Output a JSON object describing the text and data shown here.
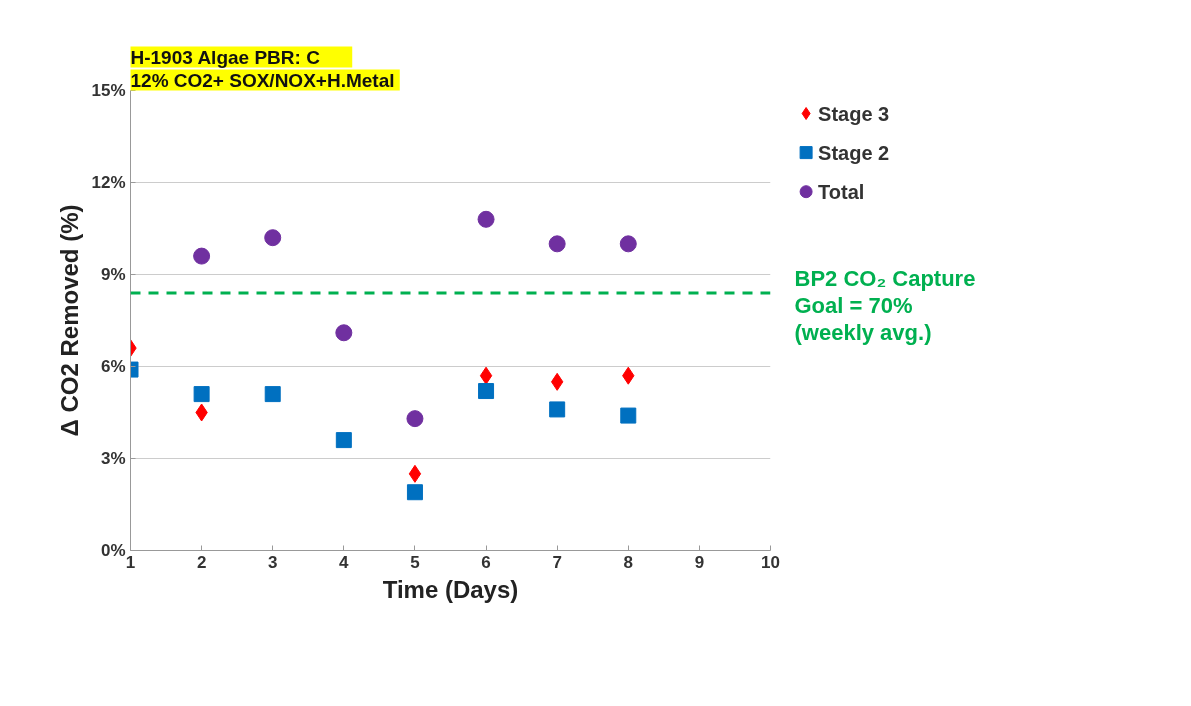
{
  "chart_data": {
    "type": "scatter",
    "title": "H-1903 Algae      PBR:  C",
    "subtitle": "12% CO2+  SOX/NOX+H.Metal",
    "xlabel": "Time (Days)",
    "ylabel": "Δ CO2 Removed (%)",
    "x": [
      1,
      2,
      3,
      4,
      5,
      6,
      7,
      8
    ],
    "series": [
      {
        "name": "Stage 3",
        "color": "#ff0000",
        "marker": "diamond",
        "values": [
          6.6,
          4.5,
          null,
          null,
          2.5,
          5.7,
          5.5,
          5.7
        ]
      },
      {
        "name": "Stage 2",
        "color": "#0070c0",
        "marker": "square",
        "values": [
          5.9,
          5.1,
          5.1,
          3.6,
          1.9,
          5.2,
          4.6,
          4.4
        ]
      },
      {
        "name": "Total",
        "color": "#7030a0",
        "marker": "circle",
        "values": [
          null,
          9.6,
          10.2,
          7.1,
          4.3,
          10.8,
          10.0,
          10.0
        ]
      }
    ],
    "xlim": [
      1,
      10
    ],
    "xticks": [
      1,
      2,
      3,
      4,
      5,
      6,
      7,
      8,
      9,
      10
    ],
    "ylim": [
      0,
      15
    ],
    "yticks": [
      {
        "value": 0,
        "label": "0%"
      },
      {
        "value": 3,
        "label": "3%"
      },
      {
        "value": 6,
        "label": "6%"
      },
      {
        "value": 9,
        "label": "9%"
      },
      {
        "value": 12,
        "label": "12%"
      },
      {
        "value": 15,
        "label": "15%"
      }
    ],
    "ref_lines": [
      {
        "axis": "y",
        "value": 8.4,
        "color": "#00b050",
        "line_style": "dashed"
      }
    ],
    "annotations": [
      "BP2 CO₂ Capture\nGoal = 70%\n(weekly avg.)"
    ],
    "grid": "y",
    "legend": "top right"
  }
}
